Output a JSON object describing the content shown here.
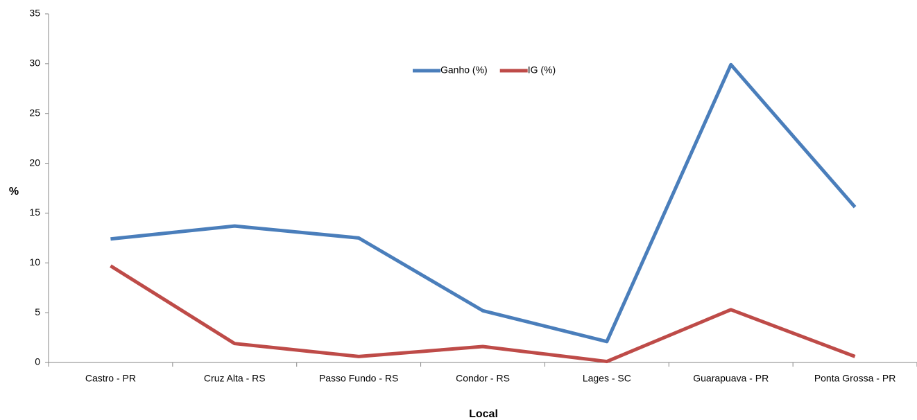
{
  "chart_data": {
    "type": "line",
    "xlabel": "Local",
    "ylabel": "%",
    "categories": [
      "Castro - PR",
      "Cruz Alta - RS",
      "Passo Fundo - RS",
      "Condor - RS",
      "Lages - SC",
      "Guarapuava - PR",
      "Ponta Grossa - PR"
    ],
    "series": [
      {
        "name": "Ganho (%)",
        "color": "#4a7ebb",
        "values": [
          12.4,
          13.7,
          12.5,
          5.2,
          2.1,
          29.9,
          15.6
        ]
      },
      {
        "name": "IG (%)",
        "color": "#be4b48",
        "values": [
          9.7,
          1.9,
          0.6,
          1.6,
          0.1,
          5.3,
          0.6
        ]
      }
    ],
    "ylim": [
      0,
      35
    ],
    "yticks": [
      0,
      5,
      10,
      15,
      20,
      25,
      30,
      35
    ],
    "grid": false,
    "legend": "top"
  }
}
